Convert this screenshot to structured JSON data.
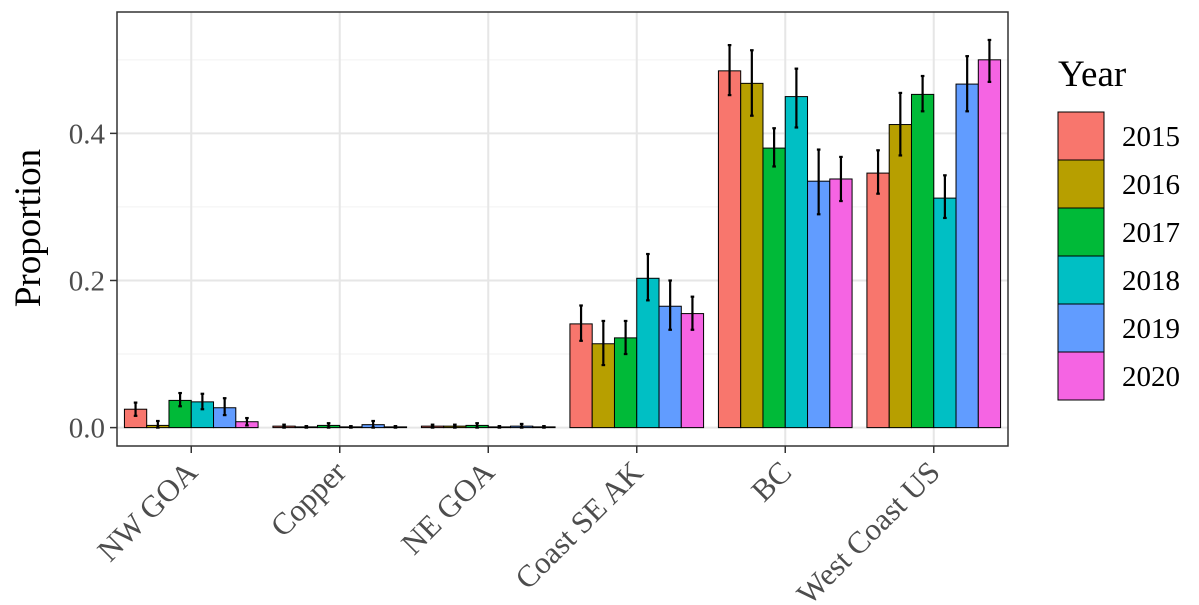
{
  "chart_data": {
    "type": "bar",
    "ylabel": "Proportion",
    "ylim": [
      -0.025,
      0.565
    ],
    "yticks": [
      "0.0",
      "0.2",
      "0.4"
    ],
    "ytick_values": [
      0,
      0.2,
      0.4
    ],
    "categories": [
      "NW GOA",
      "Copper",
      "NE GOA",
      "Coast SE AK",
      "BC",
      "West Coast US"
    ],
    "grid": true,
    "legend": {
      "title": "Year",
      "position": "right"
    },
    "series": [
      {
        "name": "2015",
        "color": "#F8766D",
        "values": [
          0.025,
          0.002,
          0.002,
          0.141,
          0.485,
          0.346
        ],
        "lower": [
          0.016,
          0.0,
          0.0,
          0.118,
          0.452,
          0.318
        ],
        "upper": [
          0.034,
          0.004,
          0.004,
          0.166,
          0.52,
          0.377
        ]
      },
      {
        "name": "2016",
        "color": "#B79F00",
        "values": [
          0.003,
          0.001,
          0.002,
          0.114,
          0.468,
          0.412
        ],
        "lower": [
          0.0,
          0.0,
          0.0,
          0.085,
          0.424,
          0.37
        ],
        "upper": [
          0.009,
          0.002,
          0.004,
          0.145,
          0.513,
          0.455
        ]
      },
      {
        "name": "2017",
        "color": "#00BA38",
        "values": [
          0.037,
          0.003,
          0.003,
          0.122,
          0.38,
          0.453
        ],
        "lower": [
          0.029,
          0.0,
          0.0,
          0.1,
          0.355,
          0.43
        ],
        "upper": [
          0.047,
          0.006,
          0.006,
          0.145,
          0.407,
          0.478
        ]
      },
      {
        "name": "2018",
        "color": "#00BFC4",
        "values": [
          0.035,
          0.001,
          0.001,
          0.203,
          0.45,
          0.312
        ],
        "lower": [
          0.025,
          0.0,
          0.0,
          0.173,
          0.408,
          0.285
        ],
        "upper": [
          0.046,
          0.002,
          0.002,
          0.236,
          0.488,
          0.343
        ]
      },
      {
        "name": "2019",
        "color": "#619CFF",
        "values": [
          0.027,
          0.004,
          0.002,
          0.165,
          0.335,
          0.467
        ],
        "lower": [
          0.017,
          0.0,
          0.0,
          0.133,
          0.29,
          0.43
        ],
        "upper": [
          0.04,
          0.009,
          0.005,
          0.2,
          0.378,
          0.505
        ]
      },
      {
        "name": "2020",
        "color": "#F564E3",
        "values": [
          0.008,
          0.001,
          0.001,
          0.155,
          0.338,
          0.5
        ],
        "lower": [
          0.003,
          0.0,
          0.0,
          0.133,
          0.308,
          0.47
        ],
        "upper": [
          0.013,
          0.002,
          0.002,
          0.178,
          0.368,
          0.527
        ]
      }
    ]
  }
}
